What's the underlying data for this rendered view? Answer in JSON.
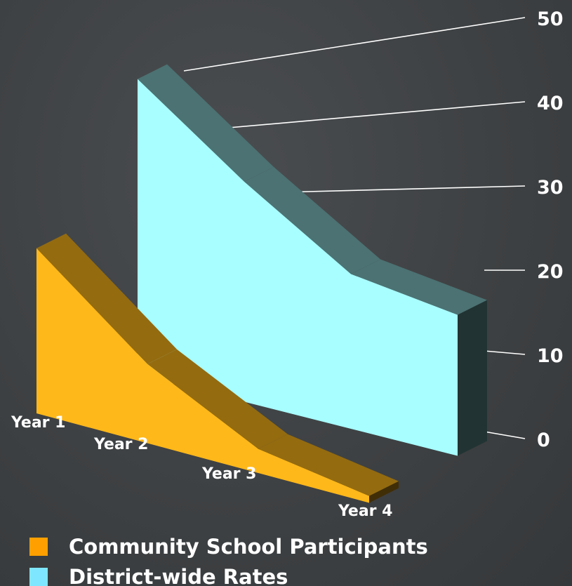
{
  "chart_data": {
    "type": "area",
    "style": "3d",
    "categories": [
      "Year 1",
      "Year 2",
      "Year 3",
      "Year 4"
    ],
    "series": [
      {
        "name": "Community School Participants",
        "values": [
          24,
          11.5,
          3.5,
          1
        ],
        "color": "#ffb81a"
      },
      {
        "name": "District-wide Rates",
        "values": [
          43,
          32,
          22.5,
          20.5
        ],
        "color": "#a8fdff"
      }
    ],
    "yticks": [
      0,
      10,
      20,
      30,
      40,
      50
    ],
    "ylim": [
      0,
      50
    ],
    "grid": true,
    "legend": "bottom-left"
  },
  "legend": {
    "items": [
      {
        "label": "Community School Participants",
        "color": "#ffa000"
      },
      {
        "label": "District-wide Rates",
        "color": "#7fe6ff"
      }
    ]
  }
}
